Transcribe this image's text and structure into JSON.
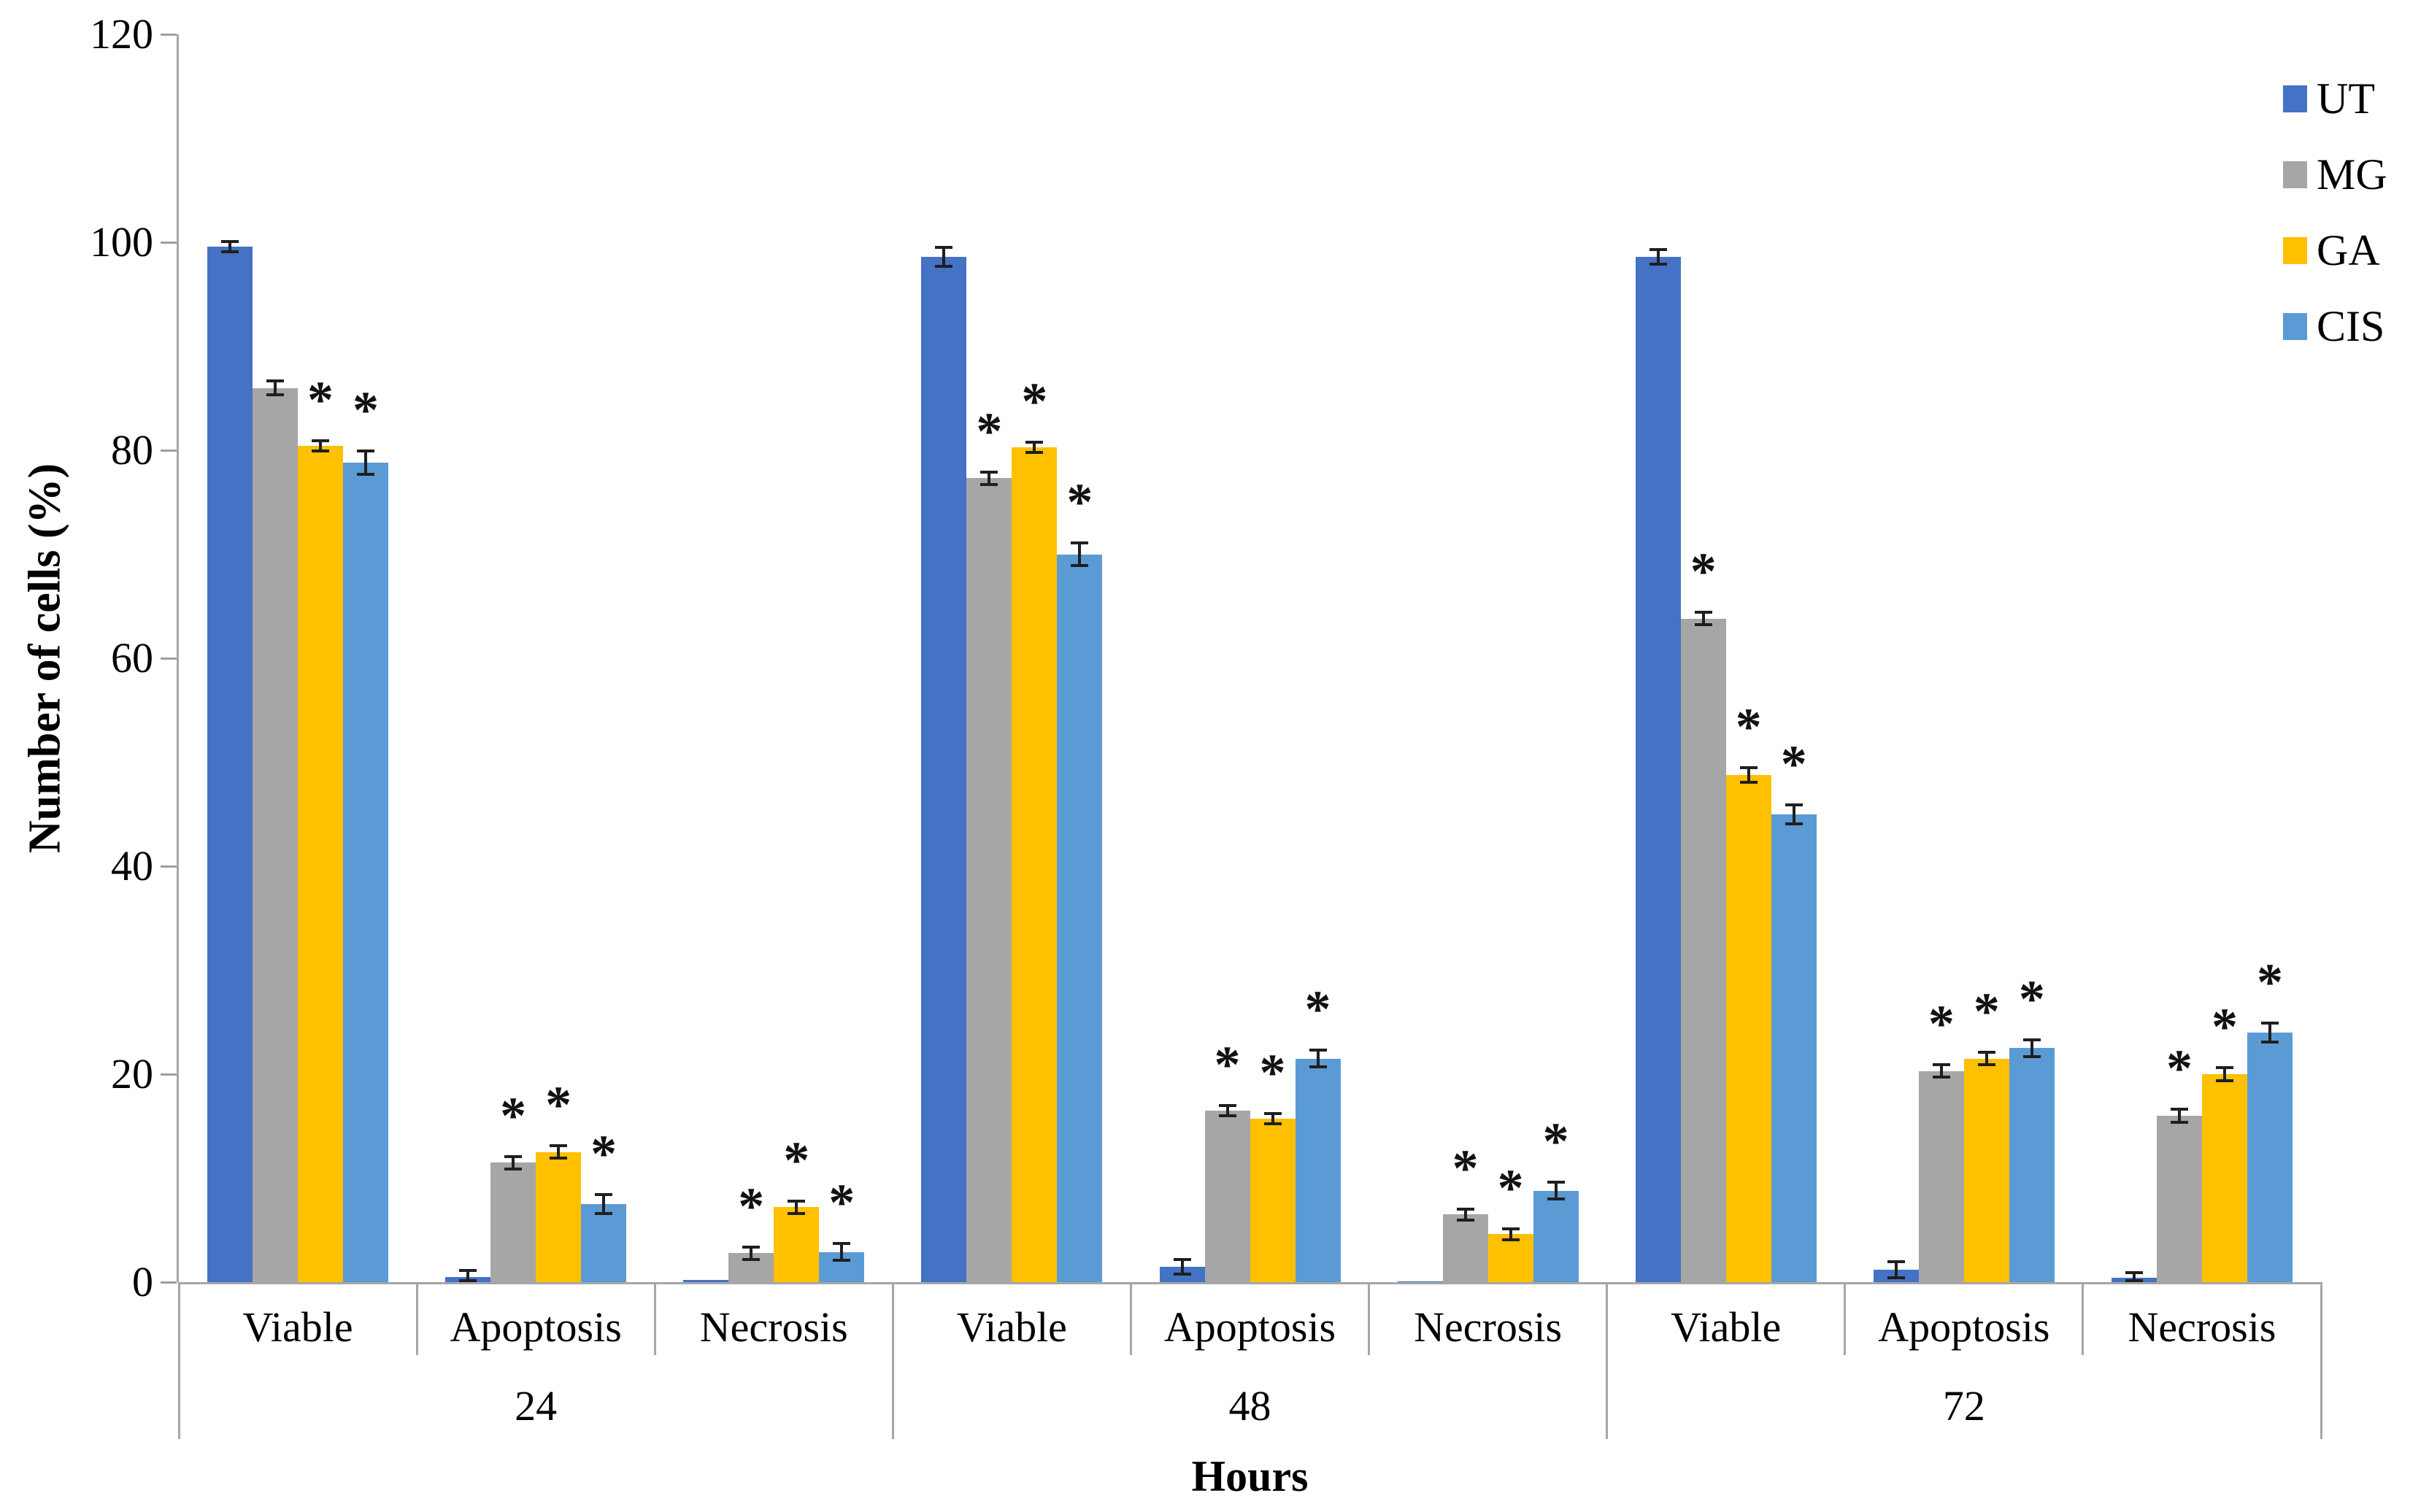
{
  "chart_data": {
    "type": "bar",
    "title": "",
    "ylabel": "Number of cells (%)",
    "xlabel": "Hours",
    "ylim": [
      0,
      120
    ],
    "yticks": [
      0,
      20,
      40,
      60,
      80,
      100,
      120
    ],
    "grid": false,
    "legend_position": "top-right",
    "groups": [
      "24",
      "48",
      "72"
    ],
    "categories": [
      "Viable",
      "Apoptosis",
      "Necrosis"
    ],
    "significance_marker": "*",
    "series": [
      {
        "name": "UT",
        "color": "#4472C4",
        "values": [
          99.6,
          0.5,
          0.2,
          98.6,
          1.5,
          0.1,
          98.6,
          1.2,
          0.4
        ],
        "errors": [
          0.5,
          0.6,
          0,
          0.9,
          0.7,
          0,
          0.7,
          0.8,
          0.5
        ],
        "significant": [
          false,
          false,
          false,
          false,
          false,
          false,
          false,
          false,
          false
        ]
      },
      {
        "name": "MG",
        "color": "#A6A6A6",
        "values": [
          86.0,
          11.5,
          2.8,
          77.3,
          16.5,
          6.5,
          63.8,
          20.3,
          16.0
        ],
        "errors": [
          0.7,
          0.6,
          0.6,
          0.6,
          0.5,
          0.5,
          0.6,
          0.6,
          0.6
        ],
        "significant": [
          false,
          true,
          true,
          true,
          true,
          true,
          true,
          true,
          true
        ]
      },
      {
        "name": "GA",
        "color": "#FFC000",
        "values": [
          80.4,
          12.5,
          7.2,
          80.3,
          15.7,
          4.6,
          48.8,
          21.5,
          20.0
        ],
        "errors": [
          0.5,
          0.6,
          0.6,
          0.5,
          0.5,
          0.5,
          0.7,
          0.6,
          0.6
        ],
        "significant": [
          true,
          true,
          true,
          true,
          true,
          true,
          true,
          true,
          true
        ]
      },
      {
        "name": "CIS",
        "color": "#5B9BD5",
        "values": [
          78.8,
          7.5,
          2.9,
          70.0,
          21.5,
          8.8,
          45.0,
          22.5,
          24.0
        ],
        "errors": [
          1.1,
          0.9,
          0.8,
          1.1,
          0.8,
          0.8,
          0.9,
          0.8,
          0.9
        ],
        "significant": [
          true,
          true,
          true,
          true,
          true,
          true,
          true,
          true,
          true
        ]
      }
    ]
  }
}
